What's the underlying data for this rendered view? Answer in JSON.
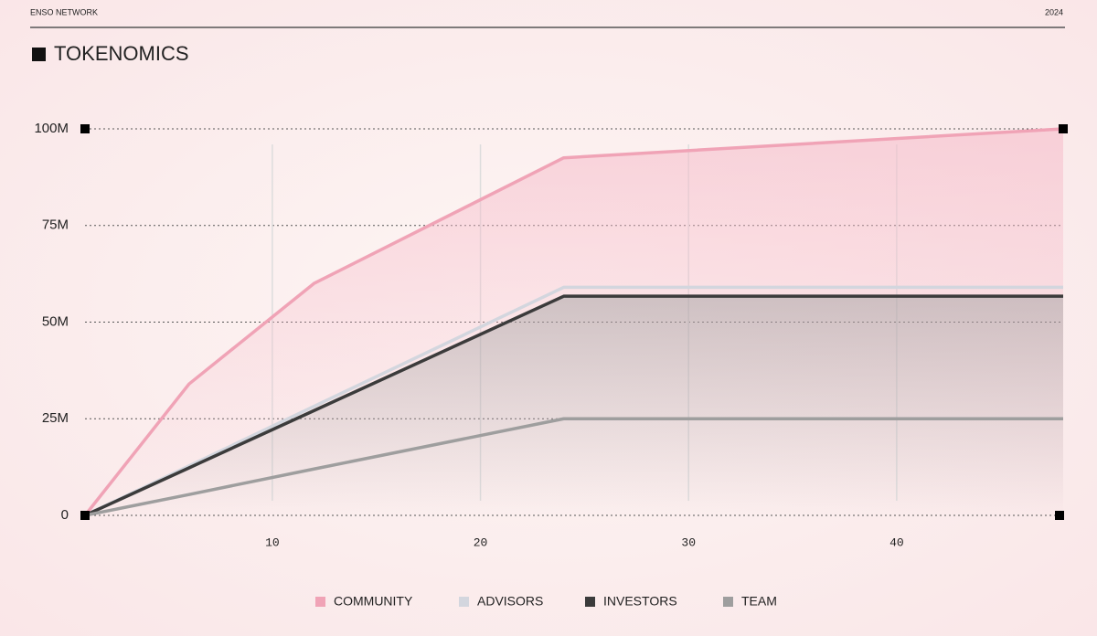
{
  "header": {
    "brand": "ENSO NETWORK",
    "year": "2024"
  },
  "chart_data": {
    "type": "line",
    "title": "TOKENOMICS",
    "x": [
      1,
      6,
      12,
      24,
      48
    ],
    "series": [
      {
        "name": "COMMUNITY",
        "color": "#f0a3b6",
        "values": [
          0,
          34000000,
          60000000,
          92500000,
          100000000
        ]
      },
      {
        "name": "ADVISORS",
        "color": "#d3d6de",
        "values": [
          0,
          12800000,
          28200000,
          59000000,
          59000000
        ]
      },
      {
        "name": "INVESTORS",
        "color": "#3b3b3b",
        "values": [
          0,
          12300000,
          27100000,
          56700000,
          56700000
        ]
      },
      {
        "name": "TEAM",
        "color": "#9e9e9e",
        "values": [
          0,
          5400000,
          12000000,
          25000000,
          25000000
        ]
      }
    ],
    "xlim": [
      1,
      48
    ],
    "xticks": [
      10,
      20,
      30,
      40
    ],
    "ylim": [
      0,
      100000000
    ],
    "yticks": [
      0,
      {
        "value": 25000000,
        "label": "25M"
      },
      {
        "value": 50000000,
        "label": "50M"
      },
      {
        "value": 75000000,
        "label": "75M"
      },
      {
        "value": 100000000,
        "label": "100M"
      }
    ],
    "grid": true,
    "legend": "bottom"
  }
}
